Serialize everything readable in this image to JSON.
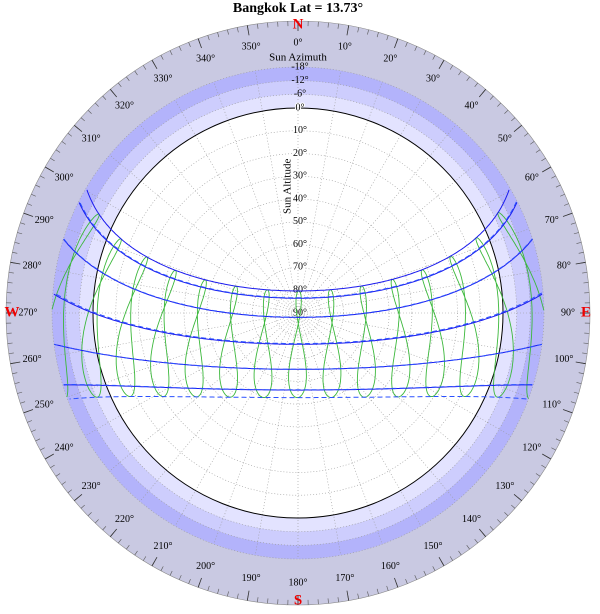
{
  "chart_data": {
    "type": "sunpath",
    "title": "Bangkok  Lat = 13.73°",
    "latitude": 13.73,
    "compass": [
      "N",
      "E",
      "S",
      "W"
    ],
    "azimuth_label": "Sun Azimuth",
    "altitude_label": "Sun Altitude",
    "azimuth_ticks": [
      {
        "value": 0,
        "label": "0°"
      },
      {
        "value": 10,
        "label": "10°"
      },
      {
        "value": 20,
        "label": "20°"
      },
      {
        "value": 30,
        "label": "30°"
      },
      {
        "value": 40,
        "label": "40°"
      },
      {
        "value": 50,
        "label": "50°"
      },
      {
        "value": 60,
        "label": "60°"
      },
      {
        "value": 70,
        "label": "70°"
      },
      {
        "value": 80,
        "label": "80°"
      },
      {
        "value": 90,
        "label": "90°"
      },
      {
        "value": 100,
        "label": "100°"
      },
      {
        "value": 110,
        "label": "110°"
      },
      {
        "value": 120,
        "label": "120°"
      },
      {
        "value": 130,
        "label": "130°"
      },
      {
        "value": 140,
        "label": "140°"
      },
      {
        "value": 150,
        "label": "150°"
      },
      {
        "value": 160,
        "label": "160°"
      },
      {
        "value": 170,
        "label": "170°"
      },
      {
        "value": 180,
        "label": "180°"
      },
      {
        "value": 190,
        "label": "190°"
      },
      {
        "value": 200,
        "label": "200°"
      },
      {
        "value": 210,
        "label": "210°"
      },
      {
        "value": 220,
        "label": "220°"
      },
      {
        "value": 230,
        "label": "230°"
      },
      {
        "value": 240,
        "label": "240°"
      },
      {
        "value": 250,
        "label": "250°"
      },
      {
        "value": 260,
        "label": "260°"
      },
      {
        "value": 270,
        "label": "270°"
      },
      {
        "value": 280,
        "label": "280°"
      },
      {
        "value": 290,
        "label": "290°"
      },
      {
        "value": 300,
        "label": "300°"
      },
      {
        "value": 310,
        "label": "310°"
      },
      {
        "value": 320,
        "label": "320°"
      },
      {
        "value": 330,
        "label": "330°"
      },
      {
        "value": 340,
        "label": "340°"
      },
      {
        "value": 350,
        "label": "350°"
      }
    ],
    "altitude_ticks": [
      {
        "value": -18,
        "label": "-18°"
      },
      {
        "value": -12,
        "label": "-12°"
      },
      {
        "value": -6,
        "label": "-6°"
      },
      {
        "value": 0,
        "label": "0°"
      },
      {
        "value": 10,
        "label": "10°"
      },
      {
        "value": 20,
        "label": "20°"
      },
      {
        "value": 30,
        "label": "30°"
      },
      {
        "value": 40,
        "label": "40°"
      },
      {
        "value": 50,
        "label": "50°"
      },
      {
        "value": 60,
        "label": "60°"
      },
      {
        "value": 70,
        "label": "70°"
      },
      {
        "value": 80,
        "label": "80°"
      },
      {
        "value": 90,
        "label": "90°"
      }
    ],
    "series": [
      {
        "color": "#1a1aee",
        "dashed": false,
        "values": [
          23.4,
          20.2,
          11.8,
          0.0,
          -11.0,
          -20.1
        ]
      },
      {
        "color": "#2a50ff",
        "dashed": true,
        "values": [
          20.4,
          11.9,
          0.3,
          -11.0,
          -20.0,
          -23.4
        ]
      }
    ],
    "analemma_color": "#3cb83c",
    "analemma_hours": [
      5,
      6,
      7,
      8,
      9,
      10,
      11,
      12,
      13,
      14,
      15,
      16,
      17,
      18,
      19
    ]
  }
}
